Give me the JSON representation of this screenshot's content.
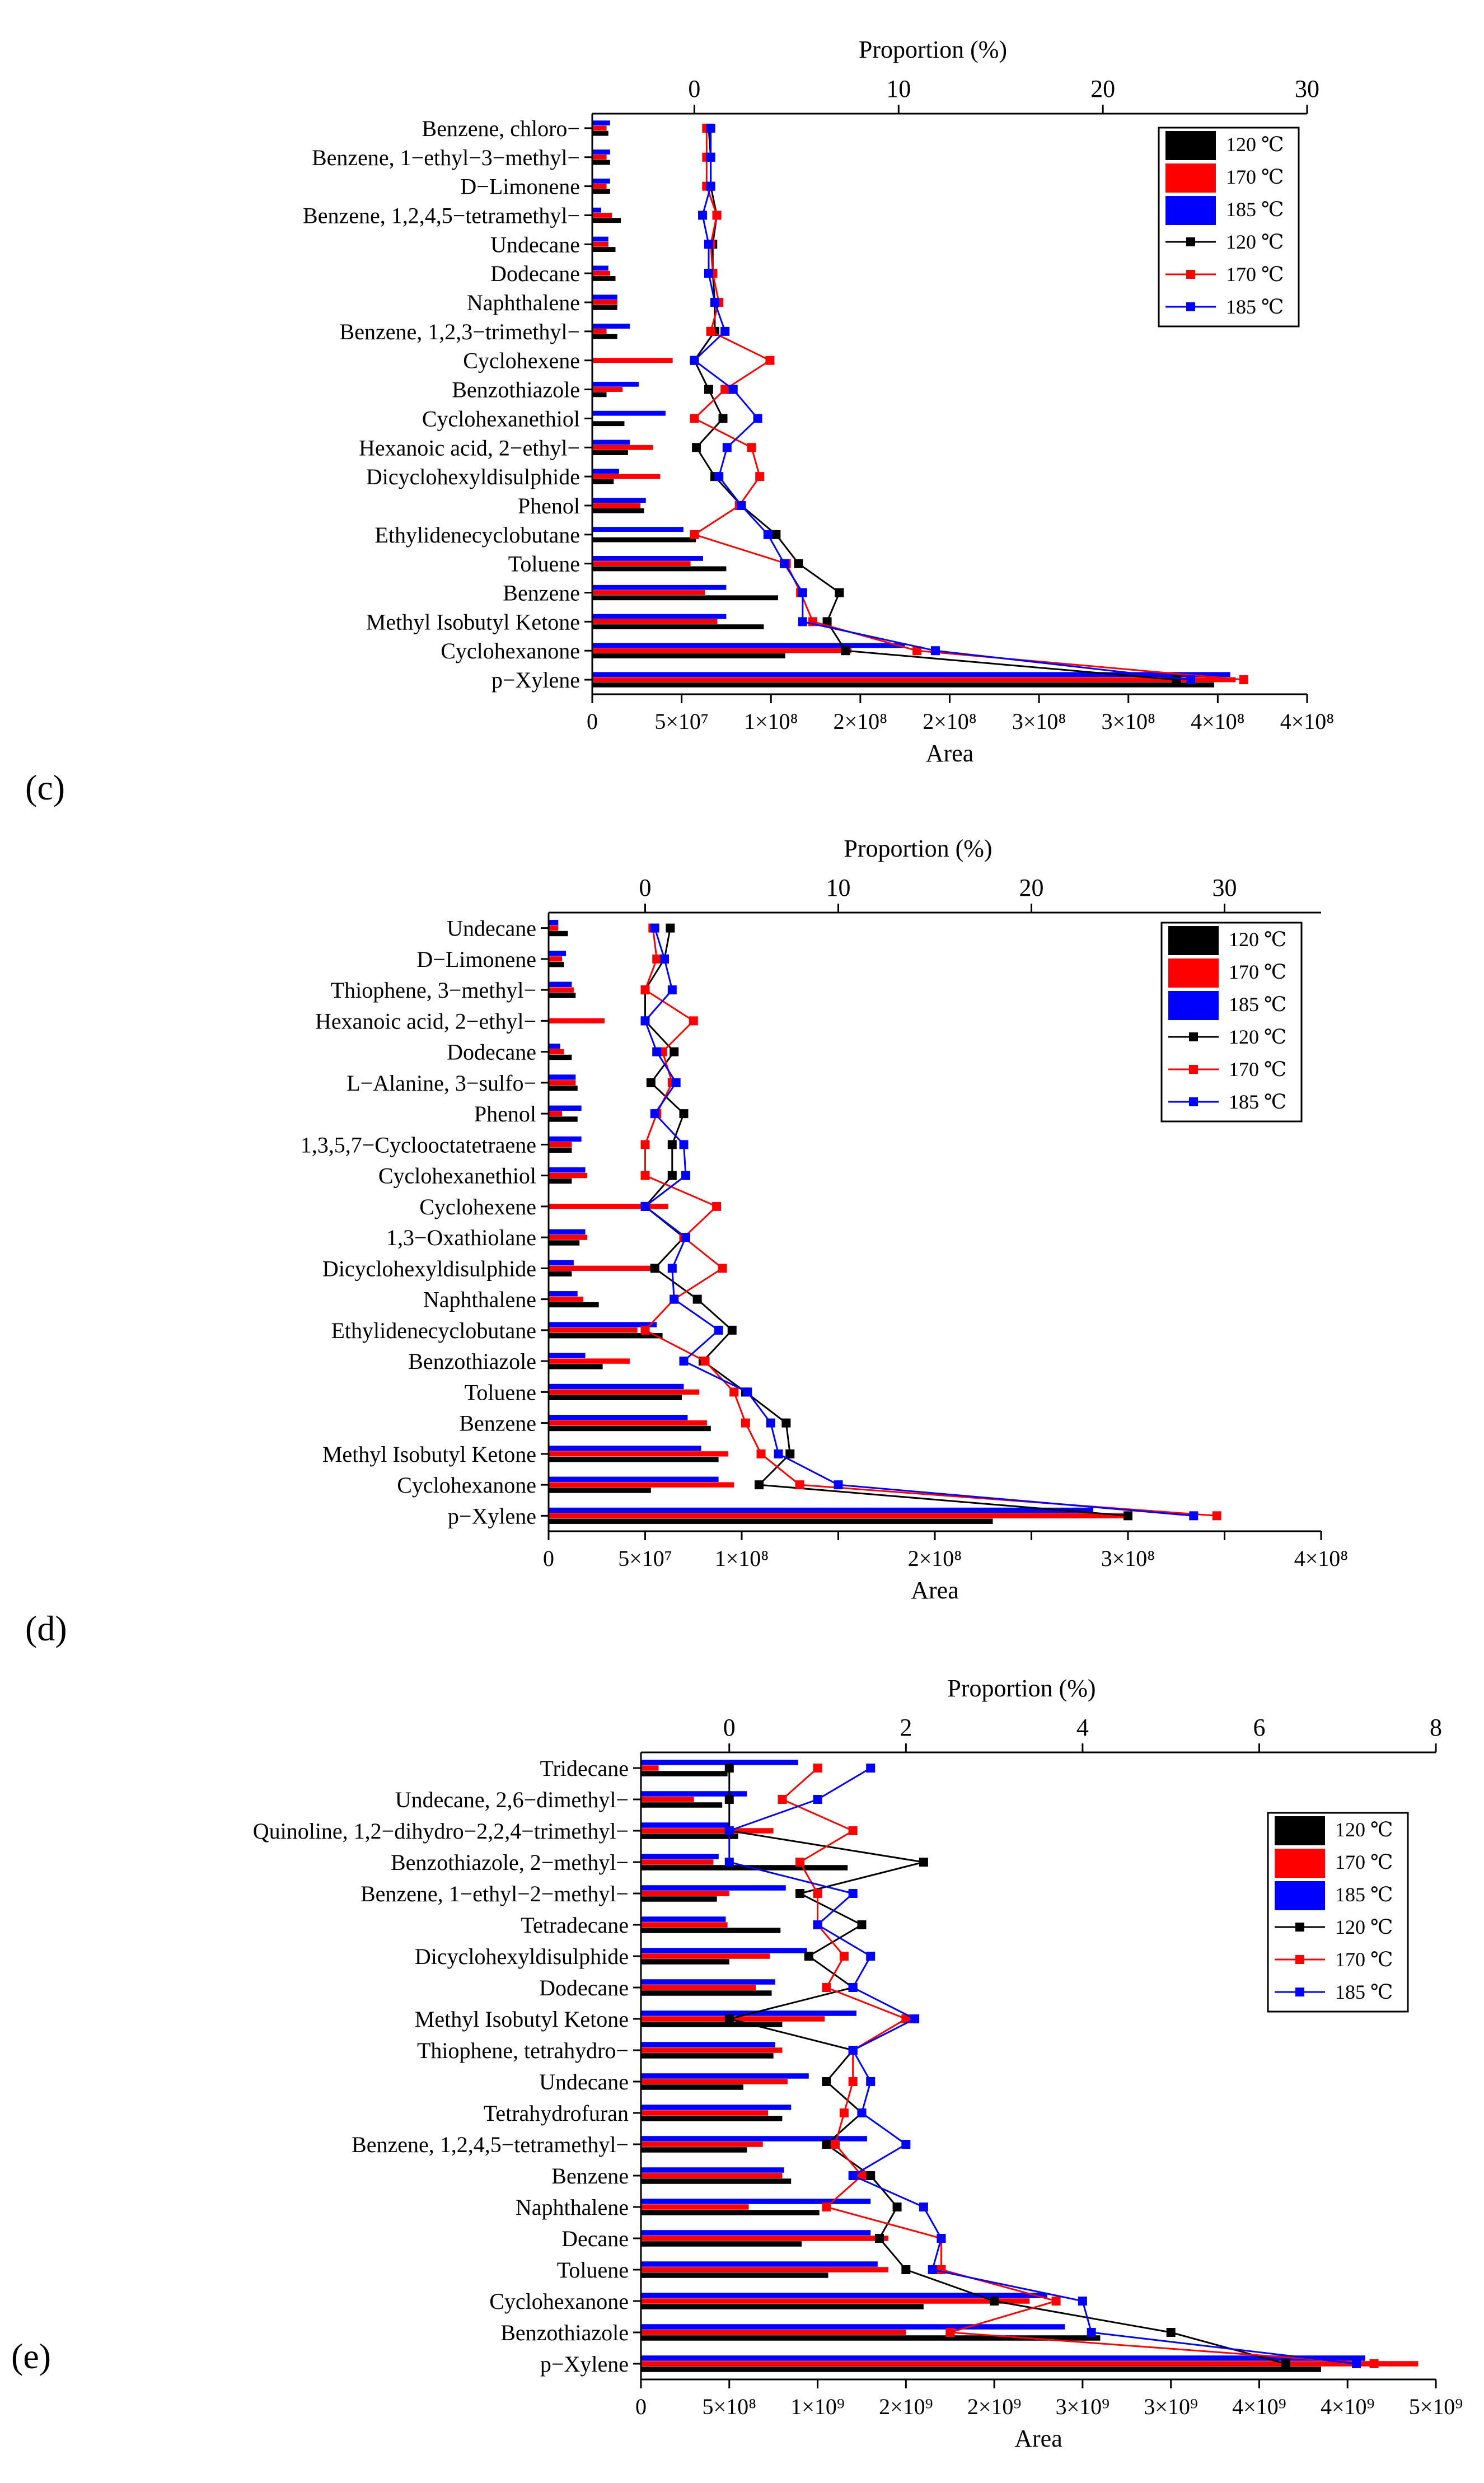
{
  "legend_labels": {
    "bar_120": "120 ℃",
    "bar_170": "170 ℃",
    "bar_185": "185 ℃",
    "line_120": "120 ℃",
    "line_170": "170 ℃",
    "line_185": "185 ℃"
  },
  "colors": {
    "t120": "#000000",
    "t170": "#ff0000",
    "t185": "#0000ff"
  },
  "chart_data": [
    {
      "panel": "(c)",
      "type": "bar",
      "orientation": "horizontal",
      "xlabel": "Area",
      "x2label": "Proportion (%)",
      "xlim": [
        0,
        400000000
      ],
      "x2lim": [
        -5,
        30
      ],
      "xticks": [
        0,
        50000000,
        100000000,
        150000000,
        200000000,
        250000000,
        300000000,
        350000000,
        400000000
      ],
      "xtick_labels": [
        "0",
        "5×10⁷",
        "1×10⁸",
        "2×10⁸",
        "2×10⁸",
        "3×10⁸",
        "3×10⁸",
        "4×10⁸",
        "4×10⁸"
      ],
      "x2ticks": [
        0,
        10,
        20,
        30
      ],
      "x2tick_labels": [
        "0",
        "10",
        "20",
        "30"
      ],
      "categories": [
        "p−Xylene",
        "Cyclohexanone",
        "Methyl Isobutyl Ketone",
        "Benzene",
        "Toluene",
        "Ethylidenecyclobutane",
        "Phenol",
        "Dicyclohexyldisulphide",
        "Hexanoic acid, 2−ethyl−",
        "Cyclohexanethiol",
        "Benzothiazole",
        "Cyclohexene",
        "Benzene, 1,2,3−trimethyl−",
        "Naphthalene",
        "Dodecane",
        "Undecane",
        "Benzene, 1,2,4,5−tetramethyl−",
        "D−Limonene",
        "Benzene, 1−ethyl−3−methyl−",
        "Benzene, chloro−"
      ],
      "series": [
        {
          "name": "120 ℃",
          "kind": "bar",
          "values": [
            348000000,
            108000000,
            96000000,
            104000000,
            75000000,
            58000000,
            29000000,
            12000000,
            20000000,
            18000000,
            8000000,
            0,
            14000000,
            14000000,
            13000000,
            13000000,
            16000000,
            10000000,
            10000000,
            9000000
          ]
        },
        {
          "name": "170 ℃",
          "kind": "bar",
          "values": [
            360000000,
            145000000,
            70000000,
            63000000,
            55000000,
            0,
            27000000,
            38000000,
            34000000,
            0,
            17000000,
            45000000,
            8000000,
            14000000,
            10000000,
            9000000,
            11000000,
            8000000,
            8000000,
            8000000
          ]
        },
        {
          "name": "185 ℃",
          "kind": "bar",
          "values": [
            357000000,
            175000000,
            75000000,
            75000000,
            62000000,
            51000000,
            30000000,
            15000000,
            21000000,
            41000000,
            26000000,
            0,
            21000000,
            14000000,
            9000000,
            9000000,
            5000000,
            10000000,
            10000000,
            10000000
          ]
        },
        {
          "name": "120 ℃",
          "kind": "line",
          "axis": "proportion",
          "values": [
            23.6,
            7.4,
            6.5,
            7.1,
            5.1,
            4.0,
            2.3,
            1.0,
            0.1,
            1.4,
            0.7,
            0.0,
            1.0,
            1.0,
            0.9,
            0.9,
            1.1,
            0.8,
            0.8,
            0.7
          ]
        },
        {
          "name": "170 ℃",
          "kind": "line",
          "axis": "proportion",
          "values": [
            26.9,
            10.9,
            5.8,
            5.2,
            4.5,
            0.0,
            2.2,
            3.2,
            2.8,
            0.0,
            1.5,
            3.7,
            0.8,
            1.2,
            0.9,
            0.8,
            1.1,
            0.6,
            0.6,
            0.6
          ]
        },
        {
          "name": "185 ℃",
          "kind": "line",
          "axis": "proportion",
          "values": [
            24.3,
            11.8,
            5.3,
            5.3,
            4.4,
            3.6,
            2.3,
            1.2,
            1.6,
            3.1,
            1.9,
            0.0,
            1.5,
            1.0,
            0.7,
            0.7,
            0.4,
            0.8,
            0.8,
            0.8
          ]
        }
      ]
    },
    {
      "panel": "(d)",
      "type": "bar",
      "orientation": "horizontal",
      "xlabel": "Area",
      "x2label": "Proportion (%)",
      "xlim": [
        0,
        400000000
      ],
      "x2lim": [
        -5,
        35
      ],
      "xticks": [
        0,
        50000000,
        100000000,
        150000000,
        200000000,
        250000000,
        300000000,
        350000000,
        400000000
      ],
      "xtick_labels": [
        "0",
        "5×10⁷",
        "1×10⁸",
        "",
        "2×10⁸",
        "",
        "3×10⁸",
        "",
        "4×10⁸"
      ],
      "x2ticks": [
        0,
        10,
        20,
        30
      ],
      "x2tick_labels": [
        "0",
        "10",
        "20",
        "30"
      ],
      "categories": [
        "p−Xylene",
        "Cyclohexanone",
        "Methyl Isobutyl Ketone",
        "Benzene",
        "Toluene",
        "Benzothiazole",
        "Ethylidenecyclobutane",
        "Naphthalene",
        "Dicyclohexyldisulphide",
        "1,3−Oxathiolane",
        "Cyclohexene",
        "Cyclohexanethiol",
        "1,3,5,7−Cyclooctatetraene",
        "Phenol",
        "L−Alanine, 3−sulfo−",
        "Dodecane",
        "Hexanoic acid, 2−ethyl−",
        "Thiophene, 3−methyl−",
        "D−Limonene",
        "Undecane"
      ],
      "series": [
        {
          "name": "120 ℃",
          "kind": "bar",
          "values": [
            230000000,
            53000000,
            88000000,
            84000000,
            69000000,
            28000000,
            59000000,
            26000000,
            12000000,
            16000000,
            0,
            12000000,
            12000000,
            15000000,
            15000000,
            12000000,
            0,
            14000000,
            8000000,
            10000000
          ]
        },
        {
          "name": "170 ℃",
          "kind": "bar",
          "values": [
            298000000,
            96000000,
            93000000,
            82000000,
            78000000,
            42000000,
            46000000,
            18000000,
            56000000,
            20000000,
            62000000,
            20000000,
            12000000,
            7000000,
            14000000,
            8000000,
            29000000,
            13000000,
            7000000,
            5000000
          ]
        },
        {
          "name": "185 ℃",
          "kind": "bar",
          "values": [
            282000000,
            88000000,
            79000000,
            72000000,
            70000000,
            19000000,
            56000000,
            15000000,
            13000000,
            19000000,
            0,
            19000000,
            17000000,
            17000000,
            14000000,
            6000000,
            0,
            12000000,
            9000000,
            5000000
          ]
        },
        {
          "name": "120 ℃",
          "kind": "line",
          "axis": "proportion",
          "values": [
            25.0,
            5.9,
            7.5,
            7.3,
            5.2,
            3.0,
            4.5,
            2.7,
            0.5,
            2.0,
            0.0,
            1.4,
            1.4,
            2.0,
            0.3,
            1.5,
            0.0,
            0.0,
            1.0,
            1.3
          ]
        },
        {
          "name": "170 ℃",
          "kind": "line",
          "axis": "proportion",
          "values": [
            29.6,
            8.0,
            6.0,
            5.2,
            4.6,
            3.1,
            0.0,
            1.5,
            4.0,
            2.0,
            3.7,
            0.0,
            0.0,
            0.6,
            1.4,
            0.9,
            2.5,
            0.0,
            0.6,
            0.4
          ]
        },
        {
          "name": "185 ℃",
          "kind": "line",
          "axis": "proportion",
          "values": [
            28.4,
            10.0,
            6.9,
            6.5,
            5.3,
            2.0,
            3.8,
            1.5,
            1.4,
            2.1,
            0.0,
            2.1,
            2.0,
            0.5,
            1.6,
            0.6,
            0.0,
            1.4,
            1.0,
            0.5
          ]
        }
      ]
    },
    {
      "panel": "(e)",
      "type": "bar",
      "orientation": "horizontal",
      "xlabel": "Area",
      "x2label": "Proportion (%)",
      "xlim": [
        0,
        4500000000
      ],
      "x2lim": [
        -1,
        8
      ],
      "xticks": [
        0,
        500000000,
        1000000000,
        1500000000,
        2000000000,
        2500000000,
        3000000000,
        3500000000,
        4000000000,
        4500000000
      ],
      "xtick_labels": [
        "0",
        "5×10⁸",
        "1×10⁹",
        "2×10⁹",
        "2×10⁹",
        "3×10⁹",
        "3×10⁹",
        "4×10⁹",
        "4×10⁹",
        "5×10⁹"
      ],
      "x2ticks": [
        0,
        2,
        4,
        6,
        8
      ],
      "x2tick_labels": [
        "0",
        "2",
        "4",
        "6",
        "8"
      ],
      "categories": [
        "p−Xylene",
        "Benzothiazole",
        "Cyclohexanone",
        "Toluene",
        "Decane",
        "Naphthalene",
        "Benzene",
        "Benzene, 1,2,4,5−tetramethyl−",
        "Tetrahydrofuran",
        "Undecane",
        "Thiophene, tetrahydro−",
        "Methyl Isobutyl Ketone",
        "Dodecane",
        "Dicyclohexyldisulphide",
        "Tetradecane",
        "Benzene, 1−ethyl−2−methyl−",
        "Benzothiazole, 2−methyl−",
        "Quinoline, 1,2−dihydro−2,2,4−trimethyl−",
        "Undecane, 2,6−dimethyl−",
        "Tridecane"
      ],
      "series": [
        {
          "name": "120 ℃",
          "kind": "bar",
          "values": [
            3850000000,
            2600000000,
            1600000000,
            1060000000,
            910000000,
            1010000000,
            850000000,
            600000000,
            800000000,
            580000000,
            750000000,
            800000000,
            740000000,
            500000000,
            790000000,
            430000000,
            1170000000,
            550000000,
            460000000,
            490000000
          ]
        },
        {
          "name": "170 ℃",
          "kind": "bar",
          "values": [
            4400000000,
            1500000000,
            2200000000,
            1400000000,
            1400000000,
            610000000,
            800000000,
            690000000,
            720000000,
            830000000,
            800000000,
            1040000000,
            650000000,
            730000000,
            490000000,
            500000000,
            410000000,
            750000000,
            300000000,
            100000000
          ]
        },
        {
          "name": "185 ℃",
          "kind": "bar",
          "values": [
            4100000000,
            2400000000,
            2300000000,
            1340000000,
            1300000000,
            1300000000,
            810000000,
            1280000000,
            850000000,
            950000000,
            760000000,
            1220000000,
            760000000,
            940000000,
            480000000,
            820000000,
            440000000,
            500000000,
            600000000,
            890000000
          ]
        },
        {
          "name": "120 ℃",
          "kind": "line",
          "axis": "proportion",
          "values": [
            6.3,
            5.0,
            3.0,
            2.0,
            1.7,
            1.9,
            1.6,
            1.1,
            1.5,
            1.1,
            1.4,
            0.0,
            1.4,
            0.9,
            1.5,
            0.8,
            2.2,
            0.0,
            0.0,
            0.0
          ]
        },
        {
          "name": "170 ℃",
          "kind": "line",
          "axis": "proportion",
          "values": [
            7.3,
            2.5,
            3.7,
            2.4,
            2.4,
            1.1,
            1.5,
            1.2,
            1.3,
            1.4,
            1.4,
            2.0,
            1.1,
            1.3,
            1.0,
            1.0,
            0.8,
            1.4,
            0.6,
            1.0
          ]
        },
        {
          "name": "185 ℃",
          "kind": "line",
          "axis": "proportion",
          "values": [
            7.1,
            4.1,
            4.0,
            2.3,
            2.4,
            2.2,
            1.4,
            2.0,
            1.5,
            1.6,
            1.4,
            2.1,
            1.4,
            1.6,
            1.0,
            1.4,
            0.0,
            0.0,
            1.0,
            1.6
          ]
        }
      ]
    }
  ]
}
